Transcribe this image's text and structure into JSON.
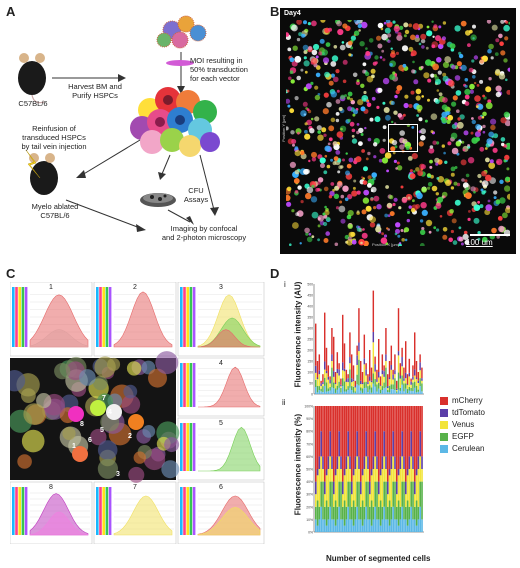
{
  "panels": {
    "A": {
      "letter": "A",
      "mouse_label": "C57BL/6",
      "harvest_label": "Harvest BM and\nPurify HSPCs",
      "moi_label": "MOI resulting in\n50% transduction\nfor each vector",
      "reinfusion_label": "Reinfusion of\ntransduced HSPCs\nby tail vein injection",
      "cfu_label": "CFU\nAssays",
      "ablated_label": "Myelo ablated\nC57BL/6",
      "imaging_label": "Imaging by confocal\nand 2-photon microscopy"
    },
    "B": {
      "letter": "B",
      "day_label": "Day4",
      "scale_label": "100 um",
      "axis_x": "Position X [µm]",
      "axis_y": "Position Y [µm]"
    },
    "C": {
      "letter": "C",
      "plot_numbers": [
        "1",
        "2",
        "3",
        "4",
        "5",
        "6",
        "7",
        "8"
      ]
    },
    "D": {
      "letter": "D",
      "sub_i": "i",
      "sub_ii": "ii",
      "ylabel_i": "Fluorescence intensity (AU)",
      "ylabel_ii": "Fluorescence intensity (%)",
      "xlabel": "Number of segmented cells",
      "ticks_i": [
        "500",
        "450",
        "400",
        "350",
        "300",
        "250",
        "200",
        "150",
        "100",
        "50",
        "0"
      ],
      "ticks_ii": [
        "100%",
        "90%",
        "80%",
        "70%",
        "60%",
        "50%",
        "40%",
        "30%",
        "20%",
        "10%",
        "0%"
      ]
    }
  },
  "legend": [
    {
      "name": "mCherry",
      "color": "#d9302c"
    },
    {
      "name": "tdTomato",
      "color": "#5b3ea8"
    },
    {
      "name": "Venus",
      "color": "#f2e43a"
    },
    {
      "name": "EGFP",
      "color": "#58b24a"
    },
    {
      "name": "Cerulean",
      "color": "#5cb8e6"
    }
  ],
  "chart_data": [
    {
      "type": "bar",
      "stacked": true,
      "ylabel": "Fluorescence intensity (AU)",
      "xlabel": "Number of segmented cells",
      "ylim": [
        0,
        500
      ],
      "series_colors": [
        "#5cb8e6",
        "#58b24a",
        "#f2e43a",
        "#5b3ea8",
        "#d9302c"
      ],
      "series_names": [
        "Cerulean",
        "EGFP",
        "Venus",
        "tdTomato",
        "mCherry"
      ],
      "totals": [
        320,
        150,
        180,
        60,
        90,
        370,
        210,
        130,
        80,
        300,
        260,
        100,
        190,
        140,
        70,
        360,
        230,
        110,
        90,
        280,
        180,
        130,
        60,
        220,
        390,
        150,
        100,
        270,
        140,
        90,
        200,
        120,
        470,
        170,
        110,
        250,
        80,
        180,
        130,
        300,
        90,
        150,
        220,
        110,
        180,
        60,
        390,
        140,
        210,
        120,
        240,
        90,
        160,
        70,
        130,
        280,
        150,
        100,
        180,
        120
      ],
      "mix": [
        [
          0.1,
          0.1,
          0.1,
          0.1,
          0.6
        ],
        [
          0.05,
          0.2,
          0.2,
          0.05,
          0.5
        ],
        [
          0.1,
          0.1,
          0.3,
          0.1,
          0.4
        ],
        [
          0.2,
          0.2,
          0.2,
          0.2,
          0.2
        ],
        [
          0.1,
          0.3,
          0.1,
          0.1,
          0.4
        ]
      ]
    },
    {
      "type": "bar",
      "stacked": true,
      "normalized": true,
      "ylabel": "Fluorescence intensity (%)",
      "xlabel": "Number of segmented cells",
      "ylim": [
        0,
        100
      ]
    }
  ]
}
